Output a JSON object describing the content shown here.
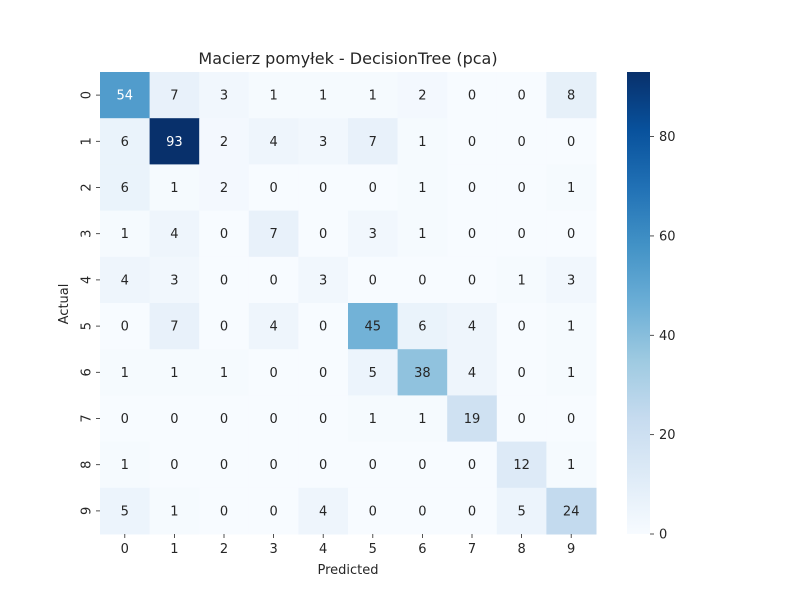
{
  "chart_data": {
    "type": "heatmap",
    "title": "Macierz pomyłek - DecisionTree (pca)",
    "xlabel": "Predicted",
    "ylabel": "Actual",
    "x_categories": [
      "0",
      "1",
      "2",
      "3",
      "4",
      "5",
      "6",
      "7",
      "8",
      "9"
    ],
    "y_categories": [
      "0",
      "1",
      "2",
      "3",
      "4",
      "5",
      "6",
      "7",
      "8",
      "9"
    ],
    "matrix": [
      [
        54,
        7,
        3,
        1,
        1,
        1,
        2,
        0,
        0,
        8
      ],
      [
        6,
        93,
        2,
        4,
        3,
        7,
        1,
        0,
        0,
        0
      ],
      [
        6,
        1,
        2,
        0,
        0,
        0,
        1,
        0,
        0,
        1
      ],
      [
        1,
        4,
        0,
        7,
        0,
        3,
        1,
        0,
        0,
        0
      ],
      [
        4,
        3,
        0,
        0,
        3,
        0,
        0,
        0,
        1,
        3
      ],
      [
        0,
        7,
        0,
        4,
        0,
        45,
        6,
        4,
        0,
        1
      ],
      [
        1,
        1,
        1,
        0,
        0,
        5,
        38,
        4,
        0,
        1
      ],
      [
        0,
        0,
        0,
        0,
        0,
        1,
        1,
        19,
        0,
        0
      ],
      [
        1,
        0,
        0,
        0,
        0,
        0,
        0,
        0,
        12,
        1
      ],
      [
        5,
        1,
        0,
        0,
        4,
        0,
        0,
        0,
        5,
        24
      ]
    ],
    "colormap": "Blues",
    "color_range": [
      0,
      93
    ],
    "colorbar_ticks": [
      0,
      20,
      40,
      60,
      80
    ],
    "colorbar_tick_labels": [
      "0",
      "20",
      "40",
      "60",
      "80"
    ]
  }
}
